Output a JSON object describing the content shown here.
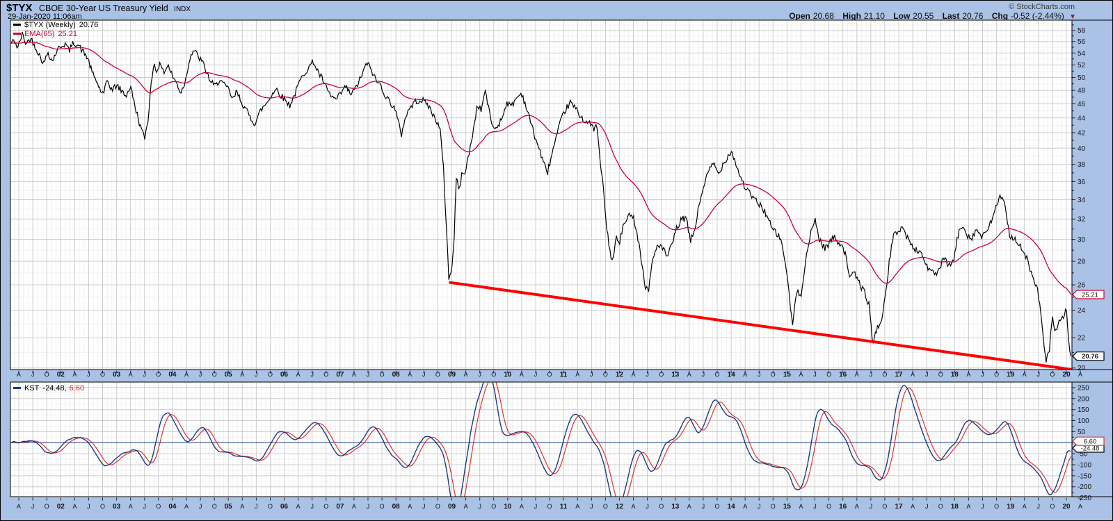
{
  "header": {
    "symbol": "$TYX",
    "title": "CBOE 30-Year US Treasury Yield",
    "index_tag": "INDX",
    "timestamp": "29-Jan-2020 11:06am",
    "watermark": "© StockCharts.com",
    "quote": {
      "open_label": "Open",
      "open": "20.68",
      "high_label": "High",
      "high": "21.10",
      "low_label": "Low",
      "low": "20.55",
      "last_label": "Last",
      "last": "20.76",
      "chg_label": "Chg",
      "chg": "-0.52 (-2.44%)"
    }
  },
  "icons": {
    "change_direction": "▼"
  },
  "colors": {
    "background": "#a9c2e6",
    "plot_bg": "#ffffff",
    "grid_major": "#cccccc",
    "grid_minor": "#f1f1f1",
    "border": "#000000",
    "axis_text": "#111111",
    "price": "#000000",
    "ema": "#cc0033",
    "trendline": "#ff0000",
    "kst": "#1c3a80",
    "kst_signal": "#e03030",
    "negative": "#8b1a32"
  },
  "x_ticks": [
    [
      2001.25,
      "A",
      0
    ],
    [
      2001.5,
      "J",
      0
    ],
    [
      2001.75,
      "O",
      0
    ],
    [
      2002,
      "02",
      1
    ],
    [
      2002.25,
      "A",
      0
    ],
    [
      2002.5,
      "J",
      0
    ],
    [
      2002.75,
      "O",
      0
    ],
    [
      2003,
      "03",
      1
    ],
    [
      2003.25,
      "A",
      0
    ],
    [
      2003.5,
      "J",
      0
    ],
    [
      2003.75,
      "O",
      0
    ],
    [
      2004,
      "04",
      1
    ],
    [
      2004.25,
      "A",
      0
    ],
    [
      2004.5,
      "J",
      0
    ],
    [
      2004.75,
      "O",
      0
    ],
    [
      2005,
      "05",
      1
    ],
    [
      2005.25,
      "A",
      0
    ],
    [
      2005.5,
      "J",
      0
    ],
    [
      2005.75,
      "O",
      0
    ],
    [
      2006,
      "06",
      1
    ],
    [
      2006.25,
      "A",
      0
    ],
    [
      2006.5,
      "J",
      0
    ],
    [
      2006.75,
      "O",
      0
    ],
    [
      2007,
      "07",
      1
    ],
    [
      2007.25,
      "A",
      0
    ],
    [
      2007.5,
      "J",
      0
    ],
    [
      2007.75,
      "O",
      0
    ],
    [
      2008,
      "08",
      1
    ],
    [
      2008.25,
      "A",
      0
    ],
    [
      2008.5,
      "J",
      0
    ],
    [
      2008.75,
      "O",
      0
    ],
    [
      2009,
      "09",
      1
    ],
    [
      2009.25,
      "A",
      0
    ],
    [
      2009.5,
      "J",
      0
    ],
    [
      2009.75,
      "O",
      0
    ],
    [
      2010,
      "10",
      1
    ],
    [
      2010.25,
      "A",
      0
    ],
    [
      2010.5,
      "J",
      0
    ],
    [
      2010.75,
      "O",
      0
    ],
    [
      2011,
      "11",
      1
    ],
    [
      2011.25,
      "A",
      0
    ],
    [
      2011.5,
      "J",
      0
    ],
    [
      2011.75,
      "O",
      0
    ],
    [
      2012,
      "12",
      1
    ],
    [
      2012.25,
      "A",
      0
    ],
    [
      2012.5,
      "J",
      0
    ],
    [
      2012.75,
      "O",
      0
    ],
    [
      2013,
      "13",
      1
    ],
    [
      2013.25,
      "A",
      0
    ],
    [
      2013.5,
      "J",
      0
    ],
    [
      2013.75,
      "O",
      0
    ],
    [
      2014,
      "14",
      1
    ],
    [
      2014.25,
      "A",
      0
    ],
    [
      2014.5,
      "J",
      0
    ],
    [
      2014.75,
      "O",
      0
    ],
    [
      2015,
      "15",
      1
    ],
    [
      2015.25,
      "A",
      0
    ],
    [
      2015.5,
      "J",
      0
    ],
    [
      2015.75,
      "O",
      0
    ],
    [
      2016,
      "16",
      1
    ],
    [
      2016.25,
      "A",
      0
    ],
    [
      2016.5,
      "J",
      0
    ],
    [
      2016.75,
      "O",
      0
    ],
    [
      2017,
      "17",
      1
    ],
    [
      2017.25,
      "A",
      0
    ],
    [
      2017.5,
      "J",
      0
    ],
    [
      2017.75,
      "O",
      0
    ],
    [
      2018,
      "18",
      1
    ],
    [
      2018.25,
      "A",
      0
    ],
    [
      2018.5,
      "J",
      0
    ],
    [
      2018.75,
      "O",
      0
    ],
    [
      2019,
      "19",
      1
    ],
    [
      2019.25,
      "A",
      0
    ],
    [
      2019.5,
      "J",
      0
    ],
    [
      2019.75,
      "O",
      0
    ],
    [
      2020,
      "20",
      1
    ],
    [
      2020.25,
      "A",
      0
    ]
  ],
  "chart_data": [
    {
      "type": "line",
      "title": "$TYX (Weekly)",
      "legend": [
        {
          "name": "$TYX (Weekly)",
          "value": "20.76",
          "color": "#000000"
        },
        {
          "name": "EMA(65)",
          "value": "25.21",
          "color": "#cc0033"
        }
      ],
      "x_range": [
        2001.1,
        2020.1
      ],
      "y_scale": "log",
      "y_range": [
        19.9,
        59.9
      ],
      "y_ticks": [
        58,
        56,
        54,
        52,
        50,
        48,
        46,
        44,
        42,
        40,
        38,
        36,
        34,
        32,
        30,
        28,
        26,
        24,
        22,
        20
      ],
      "ema_period": 65,
      "weekly_step_years": 0.019231,
      "jitter": {
        "base": 0.06,
        "scale": 0.009,
        "seed": 42
      },
      "trendline": {
        "from": [
          2008.95,
          26.2
        ],
        "to": [
          2020.1,
          19.9
        ]
      },
      "series_anchors": [
        [
          2001.1,
          55.6
        ],
        [
          2001.17,
          56.2
        ],
        [
          2001.23,
          54.8
        ],
        [
          2001.31,
          57.3
        ],
        [
          2001.38,
          55.6
        ],
        [
          2001.46,
          56.6
        ],
        [
          2001.54,
          55.2
        ],
        [
          2001.62,
          53.6
        ],
        [
          2001.7,
          52.2
        ],
        [
          2001.77,
          54.2
        ],
        [
          2001.85,
          52.6
        ],
        [
          2001.93,
          54.4
        ],
        [
          2002.0,
          55.2
        ],
        [
          2002.08,
          55.6
        ],
        [
          2002.15,
          54.4
        ],
        [
          2002.23,
          55.8
        ],
        [
          2002.31,
          55.4
        ],
        [
          2002.4,
          54.2
        ],
        [
          2002.48,
          53.2
        ],
        [
          2002.56,
          50.8
        ],
        [
          2002.63,
          49.6
        ],
        [
          2002.71,
          48.0
        ],
        [
          2002.77,
          47.3
        ],
        [
          2002.83,
          49.6
        ],
        [
          2002.92,
          48.0
        ],
        [
          2003.0,
          48.8
        ],
        [
          2003.08,
          48.0
        ],
        [
          2003.17,
          47.2
        ],
        [
          2003.25,
          48.6
        ],
        [
          2003.33,
          45.6
        ],
        [
          2003.42,
          43.0
        ],
        [
          2003.5,
          41.2
        ],
        [
          2003.56,
          43.6
        ],
        [
          2003.62,
          49.0
        ],
        [
          2003.67,
          52.6
        ],
        [
          2003.73,
          50.6
        ],
        [
          2003.79,
          52.4
        ],
        [
          2003.85,
          50.8
        ],
        [
          2003.92,
          52.0
        ],
        [
          2004.0,
          50.2
        ],
        [
          2004.08,
          49.0
        ],
        [
          2004.15,
          47.6
        ],
        [
          2004.23,
          49.4
        ],
        [
          2004.31,
          53.2
        ],
        [
          2004.38,
          54.6
        ],
        [
          2004.46,
          53.4
        ],
        [
          2004.54,
          52.4
        ],
        [
          2004.62,
          50.6
        ],
        [
          2004.69,
          49.2
        ],
        [
          2004.77,
          48.6
        ],
        [
          2004.85,
          49.8
        ],
        [
          2004.92,
          48.8
        ],
        [
          2005.0,
          48.2
        ],
        [
          2005.08,
          46.6
        ],
        [
          2005.15,
          47.8
        ],
        [
          2005.23,
          46.4
        ],
        [
          2005.31,
          45.2
        ],
        [
          2005.4,
          44.0
        ],
        [
          2005.48,
          43.2
        ],
        [
          2005.56,
          44.8
        ],
        [
          2005.63,
          45.6
        ],
        [
          2005.71,
          46.4
        ],
        [
          2005.79,
          47.6
        ],
        [
          2005.87,
          48.2
        ],
        [
          2005.94,
          47.2
        ],
        [
          2006.02,
          46.6
        ],
        [
          2006.1,
          45.8
        ],
        [
          2006.19,
          47.4
        ],
        [
          2006.27,
          49.2
        ],
        [
          2006.35,
          50.6
        ],
        [
          2006.44,
          51.6
        ],
        [
          2006.52,
          52.6
        ],
        [
          2006.6,
          51.0
        ],
        [
          2006.69,
          49.6
        ],
        [
          2006.77,
          48.0
        ],
        [
          2006.85,
          47.0
        ],
        [
          2006.94,
          46.6
        ],
        [
          2007.02,
          47.6
        ],
        [
          2007.1,
          48.6
        ],
        [
          2007.19,
          47.4
        ],
        [
          2007.27,
          48.2
        ],
        [
          2007.35,
          49.6
        ],
        [
          2007.44,
          51.4
        ],
        [
          2007.48,
          52.4
        ],
        [
          2007.56,
          51.2
        ],
        [
          2007.65,
          49.4
        ],
        [
          2007.73,
          48.8
        ],
        [
          2007.81,
          47.2
        ],
        [
          2007.9,
          46.2
        ],
        [
          2007.98,
          45.4
        ],
        [
          2008.04,
          43.4
        ],
        [
          2008.1,
          41.8
        ],
        [
          2008.17,
          44.2
        ],
        [
          2008.25,
          45.4
        ],
        [
          2008.33,
          46.2
        ],
        [
          2008.42,
          46.6
        ],
        [
          2008.5,
          46.4
        ],
        [
          2008.58,
          45.8
        ],
        [
          2008.65,
          44.6
        ],
        [
          2008.73,
          43.6
        ],
        [
          2008.79,
          42.4
        ],
        [
          2008.85,
          37.5
        ],
        [
          2008.9,
          31.5
        ],
        [
          2008.95,
          26.2
        ],
        [
          2009.0,
          27.6
        ],
        [
          2009.04,
          29.6
        ],
        [
          2009.08,
          36.6
        ],
        [
          2009.13,
          34.8
        ],
        [
          2009.17,
          36.6
        ],
        [
          2009.25,
          37.4
        ],
        [
          2009.33,
          40.0
        ],
        [
          2009.4,
          43.0
        ],
        [
          2009.46,
          46.0
        ],
        [
          2009.52,
          45.0
        ],
        [
          2009.6,
          48.0
        ],
        [
          2009.67,
          44.8
        ],
        [
          2009.75,
          42.4
        ],
        [
          2009.83,
          43.0
        ],
        [
          2009.9,
          44.0
        ],
        [
          2009.98,
          46.2
        ],
        [
          2010.06,
          45.6
        ],
        [
          2010.15,
          46.8
        ],
        [
          2010.25,
          47.6
        ],
        [
          2010.33,
          45.6
        ],
        [
          2010.42,
          43.2
        ],
        [
          2010.5,
          41.2
        ],
        [
          2010.58,
          39.6
        ],
        [
          2010.65,
          38.0
        ],
        [
          2010.71,
          37.0
        ],
        [
          2010.79,
          39.2
        ],
        [
          2010.88,
          41.6
        ],
        [
          2010.96,
          43.8
        ],
        [
          2011.04,
          45.2
        ],
        [
          2011.12,
          46.2
        ],
        [
          2011.21,
          45.4
        ],
        [
          2011.29,
          44.4
        ],
        [
          2011.38,
          43.6
        ],
        [
          2011.46,
          43.2
        ],
        [
          2011.54,
          42.6
        ],
        [
          2011.6,
          42.8
        ],
        [
          2011.65,
          38.5
        ],
        [
          2011.71,
          35.5
        ],
        [
          2011.77,
          31.0
        ],
        [
          2011.83,
          29.0
        ],
        [
          2011.88,
          27.8
        ],
        [
          2011.94,
          30.2
        ],
        [
          2012.0,
          29.6
        ],
        [
          2012.06,
          31.2
        ],
        [
          2012.13,
          31.8
        ],
        [
          2012.21,
          32.8
        ],
        [
          2012.29,
          31.4
        ],
        [
          2012.38,
          28.6
        ],
        [
          2012.46,
          25.8
        ],
        [
          2012.52,
          25.6
        ],
        [
          2012.6,
          28.2
        ],
        [
          2012.69,
          29.6
        ],
        [
          2012.77,
          29.2
        ],
        [
          2012.85,
          28.4
        ],
        [
          2012.94,
          29.4
        ],
        [
          2013.02,
          31.0
        ],
        [
          2013.1,
          31.8
        ],
        [
          2013.19,
          32.2
        ],
        [
          2013.27,
          29.8
        ],
        [
          2013.35,
          31.0
        ],
        [
          2013.44,
          33.8
        ],
        [
          2013.52,
          35.8
        ],
        [
          2013.6,
          37.2
        ],
        [
          2013.69,
          38.2
        ],
        [
          2013.77,
          36.8
        ],
        [
          2013.85,
          38.0
        ],
        [
          2013.94,
          39.0
        ],
        [
          2014.0,
          39.7
        ],
        [
          2014.06,
          38.6
        ],
        [
          2014.15,
          36.8
        ],
        [
          2014.23,
          35.6
        ],
        [
          2014.31,
          34.8
        ],
        [
          2014.4,
          34.2
        ],
        [
          2014.48,
          33.6
        ],
        [
          2014.56,
          33.2
        ],
        [
          2014.65,
          32.2
        ],
        [
          2014.73,
          31.0
        ],
        [
          2014.81,
          30.6
        ],
        [
          2014.9,
          29.8
        ],
        [
          2014.98,
          27.6
        ],
        [
          2015.04,
          25.0
        ],
        [
          2015.1,
          22.9
        ],
        [
          2015.17,
          25.4
        ],
        [
          2015.25,
          25.2
        ],
        [
          2015.33,
          28.0
        ],
        [
          2015.42,
          30.4
        ],
        [
          2015.5,
          32.0
        ],
        [
          2015.58,
          30.0
        ],
        [
          2015.67,
          29.2
        ],
        [
          2015.75,
          29.6
        ],
        [
          2015.83,
          30.2
        ],
        [
          2015.92,
          29.8
        ],
        [
          2016.0,
          29.4
        ],
        [
          2016.06,
          28.2
        ],
        [
          2016.13,
          26.6
        ],
        [
          2016.21,
          26.9
        ],
        [
          2016.29,
          26.2
        ],
        [
          2016.38,
          25.4
        ],
        [
          2016.46,
          24.6
        ],
        [
          2016.54,
          21.5
        ],
        [
          2016.6,
          22.6
        ],
        [
          2016.67,
          23.0
        ],
        [
          2016.75,
          24.6
        ],
        [
          2016.83,
          28.0
        ],
        [
          2016.9,
          30.2
        ],
        [
          2016.98,
          30.8
        ],
        [
          2017.06,
          31.2
        ],
        [
          2017.15,
          30.2
        ],
        [
          2017.23,
          29.4
        ],
        [
          2017.31,
          29.0
        ],
        [
          2017.4,
          28.8
        ],
        [
          2017.48,
          27.8
        ],
        [
          2017.56,
          27.2
        ],
        [
          2017.65,
          26.8
        ],
        [
          2017.73,
          27.4
        ],
        [
          2017.81,
          28.2
        ],
        [
          2017.9,
          27.6
        ],
        [
          2017.98,
          28.0
        ],
        [
          2018.06,
          30.4
        ],
        [
          2018.15,
          31.4
        ],
        [
          2018.23,
          30.4
        ],
        [
          2018.31,
          30.2
        ],
        [
          2018.4,
          31.0
        ],
        [
          2018.48,
          30.2
        ],
        [
          2018.56,
          30.6
        ],
        [
          2018.65,
          31.6
        ],
        [
          2018.73,
          33.2
        ],
        [
          2018.81,
          34.3
        ],
        [
          2018.9,
          33.4
        ],
        [
          2018.98,
          30.4
        ],
        [
          2019.06,
          30.2
        ],
        [
          2019.15,
          29.6
        ],
        [
          2019.23,
          28.6
        ],
        [
          2019.31,
          28.2
        ],
        [
          2019.4,
          26.4
        ],
        [
          2019.48,
          25.8
        ],
        [
          2019.56,
          23.0
        ],
        [
          2019.63,
          20.3
        ],
        [
          2019.69,
          21.0
        ],
        [
          2019.75,
          23.4
        ],
        [
          2019.81,
          22.4
        ],
        [
          2019.88,
          23.2
        ],
        [
          2019.94,
          23.6
        ],
        [
          2020.0,
          23.9
        ],
        [
          2020.04,
          21.8
        ],
        [
          2020.08,
          20.76
        ]
      ]
    },
    {
      "type": "line",
      "title": "KST",
      "legend": {
        "label": "KST",
        "value": "-24.48,",
        "signal": "6.60"
      },
      "params": {
        "roc": [
          10,
          15,
          20,
          30
        ],
        "sma": [
          10,
          10,
          10,
          15
        ],
        "weights": [
          1,
          2,
          3,
          4
        ],
        "signal": 9
      },
      "y_scale": "linear",
      "y_range": [
        275,
        -245
      ],
      "y_ticks": [
        250,
        200,
        150,
        100,
        50,
        -50,
        -100,
        -150,
        -200,
        -250
      ],
      "zero_line": 0
    }
  ]
}
